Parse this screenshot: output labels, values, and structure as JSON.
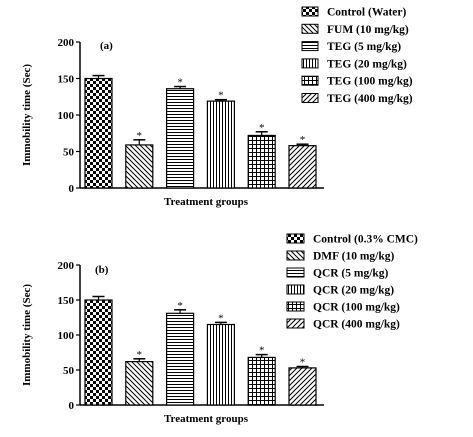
{
  "chart_data": [
    {
      "type": "bar",
      "panel_label": "(a)",
      "categories": [
        "Control (Water)",
        "FUM (10 mg/kg)",
        "TEG (5 mg/kg)",
        "TEG (20 mg/kg)",
        "TEG (100 mg/kg)",
        "TEG (400 mg/kg)"
      ],
      "values": [
        150,
        59,
        136,
        119,
        72,
        58
      ],
      "errors": [
        4,
        7,
        3,
        2,
        5,
        2
      ],
      "significance": [
        "",
        "*",
        "*",
        "*",
        "*",
        "*"
      ],
      "patterns": [
        "checker",
        "diag-down",
        "horizontal",
        "vertical",
        "grid",
        "diag-up"
      ],
      "legend": [
        "Control (Water)",
        "FUM (10 mg/kg)",
        "TEG (5 mg/kg)",
        "TEG (20 mg/kg)",
        "TEG (100 mg/kg)",
        "TEG (400 mg/kg)"
      ],
      "legend_position": "top-right",
      "xlabel": "Treatment groups",
      "ylabel": "Immobility time (Sec)",
      "ylim": [
        0,
        200
      ],
      "yticks": [
        "0",
        "50",
        "100",
        "150",
        "200"
      ]
    },
    {
      "type": "bar",
      "panel_label": "(b)",
      "categories": [
        "Control (0.3% CMC)",
        "DMF (10 mg/kg)",
        "QCR (5 mg/kg)",
        "QCR (20 mg/kg)",
        "QCR (100 mg/kg)",
        "QCR (400 mg/kg)"
      ],
      "values": [
        150,
        62,
        131,
        115,
        68,
        53
      ],
      "errors": [
        5,
        4,
        5,
        3,
        4,
        2
      ],
      "significance": [
        "",
        "*",
        "*",
        "*",
        "*",
        "*"
      ],
      "patterns": [
        "checker",
        "diag-down",
        "horizontal",
        "vertical",
        "grid",
        "diag-up"
      ],
      "legend": [
        "Control (0.3% CMC)",
        "DMF (10 mg/kg)",
        "QCR (5 mg/kg)",
        "QCR (20 mg/kg)",
        "QCR (100 mg/kg)",
        "QCR (400 mg/kg)"
      ],
      "legend_position": "top-right",
      "xlabel": "Treatment groups",
      "ylabel": "Immobility time (Sec)",
      "ylim": [
        0,
        200
      ],
      "yticks": [
        "0",
        "50",
        "100",
        "150",
        "200"
      ]
    }
  ]
}
